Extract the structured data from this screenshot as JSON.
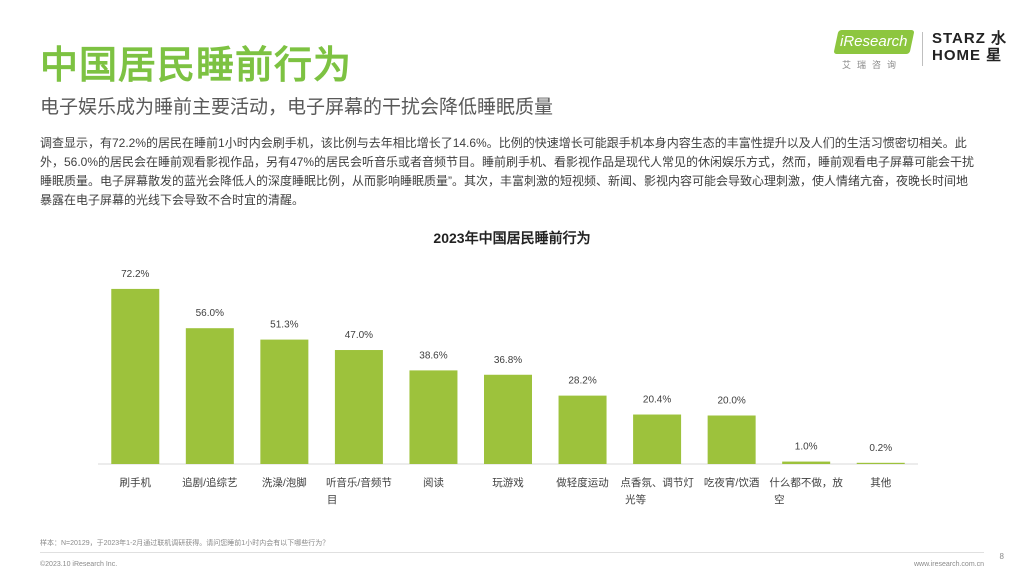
{
  "header": {
    "title": "中国居民睡前行为",
    "subtitle": "电子娱乐成为睡前主要活动，电子屏幕的干扰会降低睡眠质量"
  },
  "logos": {
    "iresearch": "iResearch",
    "iresearch_sub": "艾瑞咨询",
    "starz_line1": "STARZ 水",
    "starz_line2": "HOME 星"
  },
  "body_text": "调查显示，有72.2%的居民在睡前1小时内会刷手机，该比例与去年相比增长了14.6%。比例的快速增长可能跟手机本身内容生态的丰富性提升以及人们的生活习惯密切相关。此外，56.0%的居民会在睡前观看影视作品，另有47%的居民会听音乐或者音频节目。睡前刷手机、看影视作品是现代人常见的休闲娱乐方式，然而，睡前观看电子屏幕可能会干扰睡眠质量。电子屏幕散发的蓝光会降低人的深度睡眠比例，从而影响睡眠质量”。其次，丰富刺激的短视频、新闻、影视内容可能会导致心理刺激，使人情绪亢奋，夜晚长时间地暴露在电子屏幕的光线下会导致不合时宜的清醒。",
  "chart_data": {
    "type": "bar",
    "title": "2023年中国居民睡前行为",
    "categories": [
      "刷手机",
      "追剧/追综艺",
      "洗澡/泡脚",
      "听音乐/音频节目",
      "阅读",
      "玩游戏",
      "做轻度运动",
      "点香氛、调节灯光等",
      "吃夜宵/饮酒",
      "什么都不做，放空",
      "其他"
    ],
    "category_lines": [
      [
        "刷手机"
      ],
      [
        "追剧/追综艺"
      ],
      [
        "洗澡/泡脚"
      ],
      [
        "听音乐/音频节",
        "目"
      ],
      [
        "阅读"
      ],
      [
        "玩游戏"
      ],
      [
        "做轻度运动"
      ],
      [
        "点香氛、调节灯",
        "光等"
      ],
      [
        "吃夜宵/饮酒"
      ],
      [
        "什么都不做，放",
        "空"
      ],
      [
        "其他"
      ]
    ],
    "values": [
      72.2,
      56.0,
      51.3,
      47.0,
      38.6,
      36.8,
      28.2,
      20.4,
      20.0,
      1.0,
      0.2
    ],
    "value_labels": [
      "72.2%",
      "56.0%",
      "51.3%",
      "47.0%",
      "38.6%",
      "36.8%",
      "28.2%",
      "20.4%",
      "20.0%",
      "1.0%",
      "0.2%"
    ],
    "ylim": [
      0,
      80
    ],
    "xlabel": "",
    "ylabel": "",
    "grid": false,
    "bar_color": "#9dc23c"
  },
  "footer": {
    "note": "样本：N=20129，于2023年1-2月通过联机调研获得。请问您睡前1小时内会有以下哪些行为？",
    "copyright": "©2023.10 iResearch Inc.",
    "website": "www.iresearch.com.cn",
    "page": "8"
  }
}
